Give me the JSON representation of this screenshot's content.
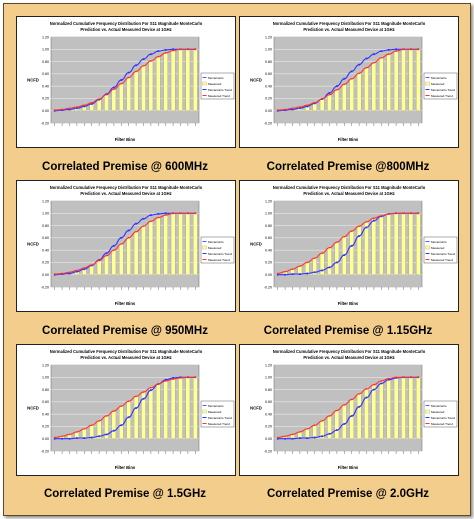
{
  "figure": {
    "title_line1": "Normalized Cumulative Frequency Distribution For S11 Magnitude MonteCarlo",
    "title_line2": "Prediction vs. Actual Measured Device at 1GHz",
    "ylabel": "NCFD",
    "xlabel": "Filter Bins",
    "yticks": [
      "1.20",
      "1.00",
      "0.80",
      "0.60",
      "0.40",
      "0.20",
      "0.00",
      "-0.20"
    ],
    "legend": [
      "MonteCarlo",
      "Measured",
      "MonteCarlo Trend",
      "Measured Trend"
    ]
  },
  "colors": {
    "frame": "#f2cd8c",
    "plot_bg": "#c0c0c0",
    "bar": "#ffff99",
    "montecarlo": "#3333ff",
    "measured": "#ff3333"
  },
  "captions": [
    "Correlated Premise @ 600MHz",
    "Correlated Premise @800MHz",
    "Correlated Premise @ 950MHz",
    "Correlated Premise @ 1.15GHz",
    "Correlated Premise @ 1.5GHz",
    "Correlated Premise @ 2.0GHz"
  ],
  "chart_data": [
    {
      "type": "bar",
      "title": "Normalized Cumulative Frequency Distribution For S11 Magnitude MonteCarlo Prediction vs. Actual Measured Device at 1GHz",
      "ylabel": "NCFD",
      "xlabel": "Filter Bins",
      "ylim": [
        -0.2,
        1.2
      ],
      "series": [
        {
          "name": "MonteCarlo",
          "values": [
            0.0,
            0.01,
            0.02,
            0.04,
            0.07,
            0.11,
            0.18,
            0.27,
            0.38,
            0.5,
            0.62,
            0.74,
            0.84,
            0.92,
            0.97,
            0.99,
            1.0,
            1.0,
            1.0,
            1.0
          ]
        },
        {
          "name": "Measured",
          "values": [
            0.01,
            0.02,
            0.04,
            0.06,
            0.09,
            0.13,
            0.19,
            0.26,
            0.35,
            0.44,
            0.54,
            0.64,
            0.73,
            0.81,
            0.88,
            0.94,
            0.98,
            1.0,
            1.0,
            1.0
          ]
        }
      ]
    },
    {
      "type": "bar",
      "title": "Normalized Cumulative Frequency Distribution For S11 Magnitude MonteCarlo Prediction vs. Actual Measured Device at 1GHz",
      "ylabel": "NCFD",
      "xlabel": "Filter Bins",
      "ylim": [
        -0.2,
        1.2
      ],
      "series": [
        {
          "name": "MonteCarlo",
          "values": [
            0.0,
            0.01,
            0.02,
            0.04,
            0.07,
            0.12,
            0.19,
            0.29,
            0.4,
            0.52,
            0.64,
            0.75,
            0.85,
            0.92,
            0.97,
            0.99,
            1.0,
            1.0,
            1.0,
            1.0
          ]
        },
        {
          "name": "Measured",
          "values": [
            0.01,
            0.02,
            0.04,
            0.06,
            0.09,
            0.13,
            0.19,
            0.26,
            0.34,
            0.43,
            0.52,
            0.61,
            0.7,
            0.78,
            0.86,
            0.92,
            0.97,
            1.0,
            1.0,
            1.0
          ]
        }
      ]
    },
    {
      "type": "bar",
      "title": "Normalized Cumulative Frequency Distribution For S11 Magnitude MonteCarlo Prediction vs. Actual Measured Device at 1GHz",
      "ylabel": "NCFD",
      "xlabel": "Filter Bins",
      "ylim": [
        -0.2,
        1.2
      ],
      "series": [
        {
          "name": "MonteCarlo",
          "values": [
            0.0,
            0.01,
            0.02,
            0.05,
            0.09,
            0.15,
            0.24,
            0.35,
            0.47,
            0.6,
            0.72,
            0.83,
            0.91,
            0.97,
            0.99,
            1.0,
            1.0,
            1.0,
            1.0,
            1.0
          ]
        },
        {
          "name": "Measured",
          "values": [
            0.01,
            0.02,
            0.04,
            0.07,
            0.11,
            0.16,
            0.23,
            0.31,
            0.4,
            0.5,
            0.6,
            0.7,
            0.79,
            0.87,
            0.93,
            0.97,
            1.0,
            1.0,
            1.0,
            1.0
          ]
        }
      ]
    },
    {
      "type": "bar",
      "title": "Normalized Cumulative Frequency Distribution For S11 Magnitude MonteCarlo Prediction vs. Actual Measured Device at 1GHz",
      "ylabel": "NCFD",
      "xlabel": "Filter Bins",
      "ylim": [
        -0.2,
        1.2
      ],
      "series": [
        {
          "name": "MonteCarlo",
          "values": [
            0.0,
            0.0,
            0.01,
            0.01,
            0.02,
            0.04,
            0.07,
            0.12,
            0.2,
            0.32,
            0.47,
            0.63,
            0.77,
            0.88,
            0.95,
            0.99,
            1.0,
            1.0,
            1.0,
            1.0
          ]
        },
        {
          "name": "Measured",
          "values": [
            0.02,
            0.05,
            0.09,
            0.14,
            0.2,
            0.27,
            0.35,
            0.44,
            0.53,
            0.62,
            0.71,
            0.79,
            0.86,
            0.92,
            0.96,
            0.99,
            1.0,
            1.0,
            1.0,
            1.0
          ]
        }
      ]
    },
    {
      "type": "bar",
      "title": "Normalized Cumulative Frequency Distribution For S11 Magnitude MonteCarlo Prediction vs. Actual Measured Device at 1GHz",
      "ylabel": "NCFD",
      "xlabel": "Filter Bins",
      "ylim": [
        -0.2,
        1.2
      ],
      "series": [
        {
          "name": "MonteCarlo",
          "values": [
            0.0,
            0.0,
            0.0,
            0.01,
            0.01,
            0.02,
            0.04,
            0.07,
            0.13,
            0.22,
            0.35,
            0.5,
            0.65,
            0.79,
            0.89,
            0.96,
            0.99,
            1.0,
            1.0,
            1.0
          ]
        },
        {
          "name": "Measured",
          "values": [
            0.02,
            0.04,
            0.07,
            0.11,
            0.16,
            0.22,
            0.29,
            0.37,
            0.45,
            0.53,
            0.61,
            0.69,
            0.76,
            0.83,
            0.89,
            0.94,
            0.97,
            0.99,
            1.0,
            1.0
          ]
        }
      ]
    },
    {
      "type": "bar",
      "title": "Normalized Cumulative Frequency Distribution For S11 Magnitude MonteCarlo Prediction vs. Actual Measured Device at 1GHz",
      "ylabel": "NCFD",
      "xlabel": "Filter Bins",
      "ylim": [
        -0.2,
        1.2
      ],
      "series": [
        {
          "name": "MonteCarlo",
          "values": [
            0.0,
            0.0,
            0.0,
            0.01,
            0.01,
            0.02,
            0.04,
            0.08,
            0.14,
            0.24,
            0.37,
            0.52,
            0.67,
            0.8,
            0.9,
            0.96,
            0.99,
            1.0,
            1.0,
            1.0
          ]
        },
        {
          "name": "Measured",
          "values": [
            0.02,
            0.04,
            0.07,
            0.11,
            0.16,
            0.22,
            0.29,
            0.37,
            0.46,
            0.55,
            0.64,
            0.73,
            0.81,
            0.88,
            0.94,
            0.98,
            1.0,
            1.0,
            1.0,
            1.0
          ]
        }
      ]
    }
  ]
}
